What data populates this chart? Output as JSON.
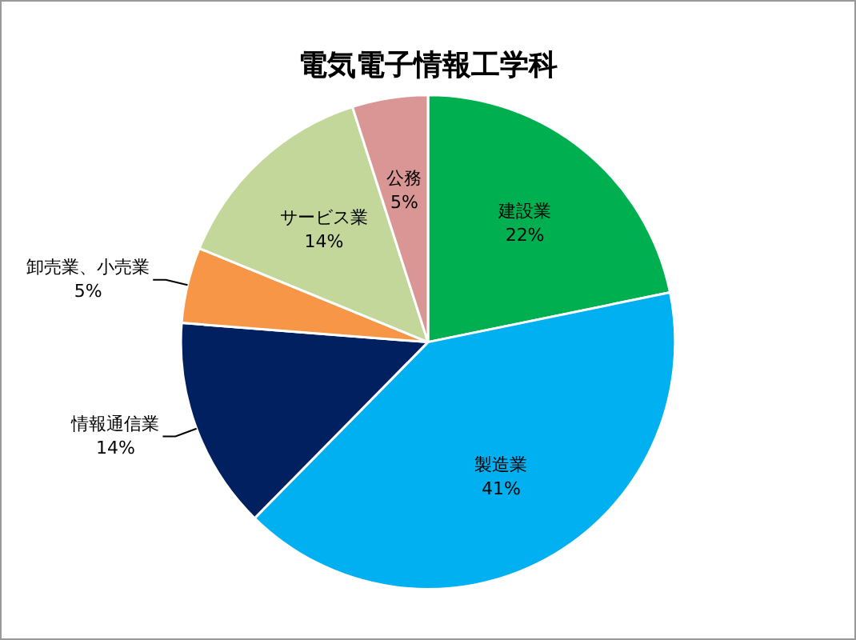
{
  "chart_data": {
    "type": "pie",
    "title": "電気電子情報工学科",
    "categories": [
      "建設業",
      "製造業",
      "情報通信業",
      "卸売業、小売業",
      "サービス業",
      "公務"
    ],
    "values": [
      22,
      41,
      14,
      5,
      14,
      5
    ],
    "value_labels": [
      "22%",
      "41%",
      "14%",
      "5%",
      "14%",
      "5%"
    ],
    "colors": [
      "#00b050",
      "#00b0f0",
      "#002060",
      "#f79646",
      "#c4d79b",
      "#da9694"
    ],
    "legend": false
  }
}
